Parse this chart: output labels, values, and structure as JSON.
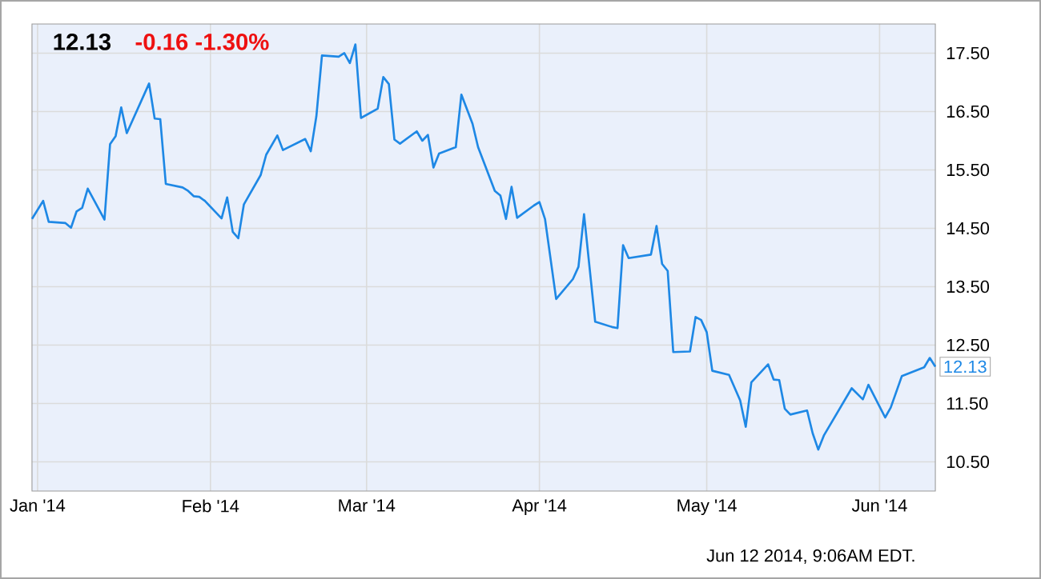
{
  "chart_data": {
    "type": "line",
    "title": "12.13",
    "subtitle": "-0.16  -1.30%",
    "x": [
      "2013-12-31",
      "2014-01-02",
      "2014-01-03",
      "2014-01-06",
      "2014-01-07",
      "2014-01-08",
      "2014-01-09",
      "2014-01-10",
      "2014-01-13",
      "2014-01-14",
      "2014-01-15",
      "2014-01-16",
      "2014-01-17",
      "2014-01-21",
      "2014-01-22",
      "2014-01-23",
      "2014-01-24",
      "2014-01-27",
      "2014-01-28",
      "2014-01-29",
      "2014-01-30",
      "2014-01-31",
      "2014-02-03",
      "2014-02-04",
      "2014-02-05",
      "2014-02-06",
      "2014-02-07",
      "2014-02-10",
      "2014-02-11",
      "2014-02-13",
      "2014-02-14",
      "2014-02-18",
      "2014-02-19",
      "2014-02-20",
      "2014-02-21",
      "2014-02-24",
      "2014-02-25",
      "2014-02-26",
      "2014-02-27",
      "2014-02-28",
      "2014-03-03",
      "2014-03-04",
      "2014-03-05",
      "2014-03-06",
      "2014-03-07",
      "2014-03-10",
      "2014-03-11",
      "2014-03-12",
      "2014-03-13",
      "2014-03-14",
      "2014-03-17",
      "2014-03-18",
      "2014-03-20",
      "2014-03-21",
      "2014-03-24",
      "2014-03-25",
      "2014-03-26",
      "2014-03-27",
      "2014-03-28",
      "2014-03-31",
      "2014-04-01",
      "2014-04-02",
      "2014-04-04",
      "2014-04-07",
      "2014-04-08",
      "2014-04-09",
      "2014-04-11",
      "2014-04-14",
      "2014-04-15",
      "2014-04-16",
      "2014-04-17",
      "2014-04-21",
      "2014-04-22",
      "2014-04-23",
      "2014-04-24",
      "2014-04-25",
      "2014-04-28",
      "2014-04-29",
      "2014-04-30",
      "2014-05-01",
      "2014-05-02",
      "2014-05-05",
      "2014-05-07",
      "2014-05-08",
      "2014-05-09",
      "2014-05-12",
      "2014-05-13",
      "2014-05-14",
      "2014-05-15",
      "2014-05-16",
      "2014-05-19",
      "2014-05-20",
      "2014-05-21",
      "2014-05-22",
      "2014-05-27",
      "2014-05-29",
      "2014-05-30",
      "2014-06-02",
      "2014-06-03",
      "2014-06-05",
      "2014-06-09",
      "2014-06-10",
      "2014-06-11"
    ],
    "values": [
      14.66,
      14.97,
      14.61,
      14.59,
      14.51,
      14.79,
      14.85,
      15.18,
      14.65,
      15.94,
      16.08,
      16.57,
      16.13,
      16.98,
      16.38,
      16.37,
      15.26,
      15.2,
      15.14,
      15.05,
      15.04,
      14.97,
      14.67,
      15.03,
      14.44,
      14.33,
      14.91,
      15.41,
      15.76,
      16.09,
      15.84,
      16.03,
      15.82,
      16.42,
      17.46,
      17.44,
      17.5,
      17.33,
      17.65,
      16.39,
      16.55,
      17.09,
      16.97,
      16.02,
      15.95,
      16.16,
      16.0,
      16.1,
      15.54,
      15.78,
      15.89,
      16.79,
      16.29,
      15.89,
      15.14,
      15.06,
      14.66,
      15.21,
      14.68,
      14.89,
      14.95,
      14.66,
      13.29,
      13.63,
      13.84,
      14.74,
      12.9,
      12.81,
      12.79,
      14.21,
      13.99,
      14.05,
      14.54,
      13.89,
      13.77,
      12.38,
      12.39,
      12.98,
      12.93,
      12.72,
      12.06,
      11.99,
      11.55,
      11.1,
      11.86,
      12.17,
      11.91,
      11.9,
      11.41,
      11.31,
      11.38,
      10.99,
      10.71,
      10.95,
      11.76,
      11.57,
      11.82,
      11.26,
      11.43,
      11.97,
      12.12,
      12.28,
      12.13
    ],
    "color": "#1e88e5",
    "marker": "none",
    "line_style": "solid",
    "grid": true,
    "xlim": [
      "2013-12-31",
      "2014-06-11"
    ],
    "xticks": [
      {
        "value": "2014-01-01",
        "label": "Jan '14"
      },
      {
        "value": "2014-02-01",
        "label": "Feb '14"
      },
      {
        "value": "2014-03-01",
        "label": "Mar '14"
      },
      {
        "value": "2014-04-01",
        "label": "Apr '14"
      },
      {
        "value": "2014-05-01",
        "label": "May '14"
      },
      {
        "value": "2014-06-01",
        "label": "Jun '14"
      }
    ],
    "ylim": [
      10,
      18
    ],
    "yticks": [
      {
        "value": 10.5,
        "label": "10.50"
      },
      {
        "value": 11.5,
        "label": "11.50"
      },
      {
        "value": 12.5,
        "label": "12.50"
      },
      {
        "value": 13.5,
        "label": "13.50"
      },
      {
        "value": 14.5,
        "label": "14.50"
      },
      {
        "value": 15.5,
        "label": "15.50"
      },
      {
        "value": 16.5,
        "label": "16.50"
      },
      {
        "value": 17.5,
        "label": "17.50"
      }
    ],
    "annotations": [
      {
        "text": "12.13",
        "x": "2014-06-11",
        "y": 12.13
      },
      "Jun 12 2014, 9:06AM EDT."
    ]
  }
}
